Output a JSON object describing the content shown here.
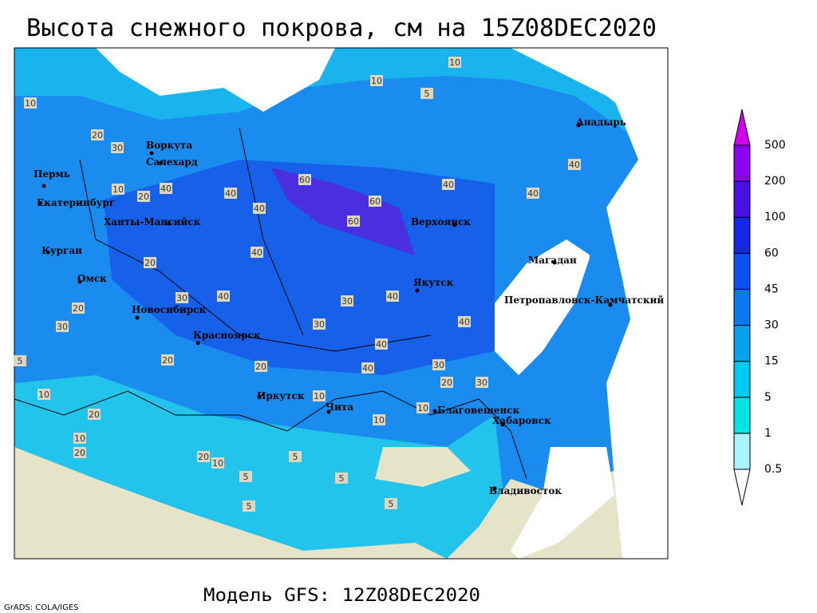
{
  "header": {
    "title": "Высота снежного покрова, см на 15Z08DEC2020"
  },
  "footer": {
    "model": "Модель GFS: 12Z08DEC2020",
    "credit": "GrADS: COLA/IGES"
  },
  "cities": [
    "Воркута",
    "Салехард",
    "Пермь",
    "Екатеринбург",
    "Ханты-Мансийск",
    "Курган",
    "Омск",
    "Новосибирск",
    "Красноярск",
    "Иркутск",
    "Чита",
    "Благовещенск",
    "Хабаровск",
    "Владивосток",
    "Верхоянск",
    "Якутск",
    "Магадан",
    "Петропавловск-Камчатский",
    "Анадырь"
  ],
  "contour_labels": [
    "10",
    "10",
    "5",
    "10",
    "20",
    "30",
    "20",
    "10",
    "40",
    "40",
    "40",
    "60",
    "60",
    "60",
    "40",
    "40",
    "40",
    "40",
    "20",
    "30",
    "40",
    "30",
    "40",
    "40",
    "20",
    "30",
    "20",
    "20",
    "30",
    "10",
    "10",
    "5",
    "5",
    "5",
    "20",
    "10",
    "20",
    "10",
    "5",
    "40",
    "40",
    "30",
    "20",
    "10",
    "30",
    "20",
    "10",
    "5",
    "5"
  ],
  "legend": {
    "levels": [
      "0.5",
      "1",
      "5",
      "15",
      "30",
      "45",
      "60",
      "100",
      "200",
      "500"
    ],
    "colors": [
      "#ffffff",
      "#a8f4ff",
      "#00e4e4",
      "#00c8f4",
      "#0aa0f0",
      "#0a78f0",
      "#0a50f0",
      "#1428e6",
      "#4a10e6",
      "#8a00f0",
      "#d200f0"
    ]
  }
}
